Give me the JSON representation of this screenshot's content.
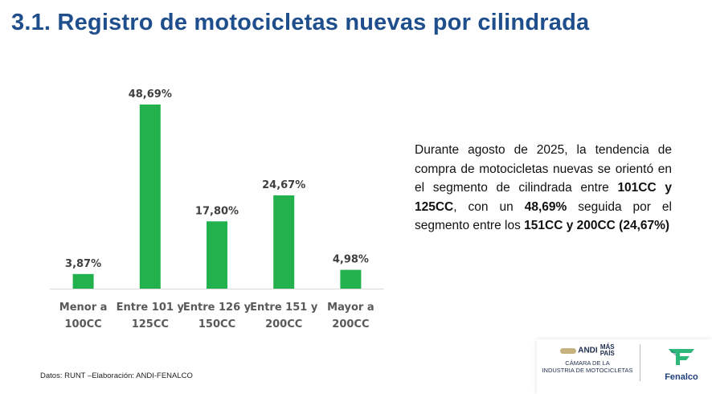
{
  "title": "3.1. Registro de motocicletas nuevas por cilindrada",
  "chart_data": {
    "type": "bar",
    "categories": [
      [
        "Menor a",
        "100CC"
      ],
      [
        "Entre 101 y",
        "125CC"
      ],
      [
        "Entre 126 y",
        "150CC"
      ],
      [
        "Entre 151 y",
        "200CC"
      ],
      [
        "Mayor a",
        "200CC"
      ]
    ],
    "values": [
      3.87,
      48.69,
      17.8,
      24.67,
      4.98
    ],
    "labels": [
      "3,87%",
      "48,69%",
      "17,80%",
      "24,67%",
      "4,98%"
    ],
    "ylim": [
      0,
      50
    ],
    "grid": false,
    "bar_color": "#22b14c"
  },
  "summary": {
    "p1": "Durante agosto de 2025, la tendencia de compra de motocicletas nuevas se orientó en el segmento de cilindrada entre ",
    "b1": "101CC y 125CC",
    "p2": ", con un ",
    "b2": "48,69%",
    "p3": " seguida por el segmento entre los ",
    "b3": "151CC y 200CC (24,67%)"
  },
  "source": "Datos: RUNT –Elaboración: ANDI-FENALCO",
  "logos": {
    "andi_brand": "ANDI",
    "andi_tag_1": "MÁS",
    "andi_tag_2": "PAÍS",
    "andi_sub_1": "CÁMARA DE LA",
    "andi_sub_2": "INDUSTRIA DE MOTOCICLETAS",
    "fenalco": "Fenalco"
  },
  "colors": {
    "title": "#1f4e8c",
    "bar": "#22b14c",
    "fenalco_green": "#2db87a"
  }
}
